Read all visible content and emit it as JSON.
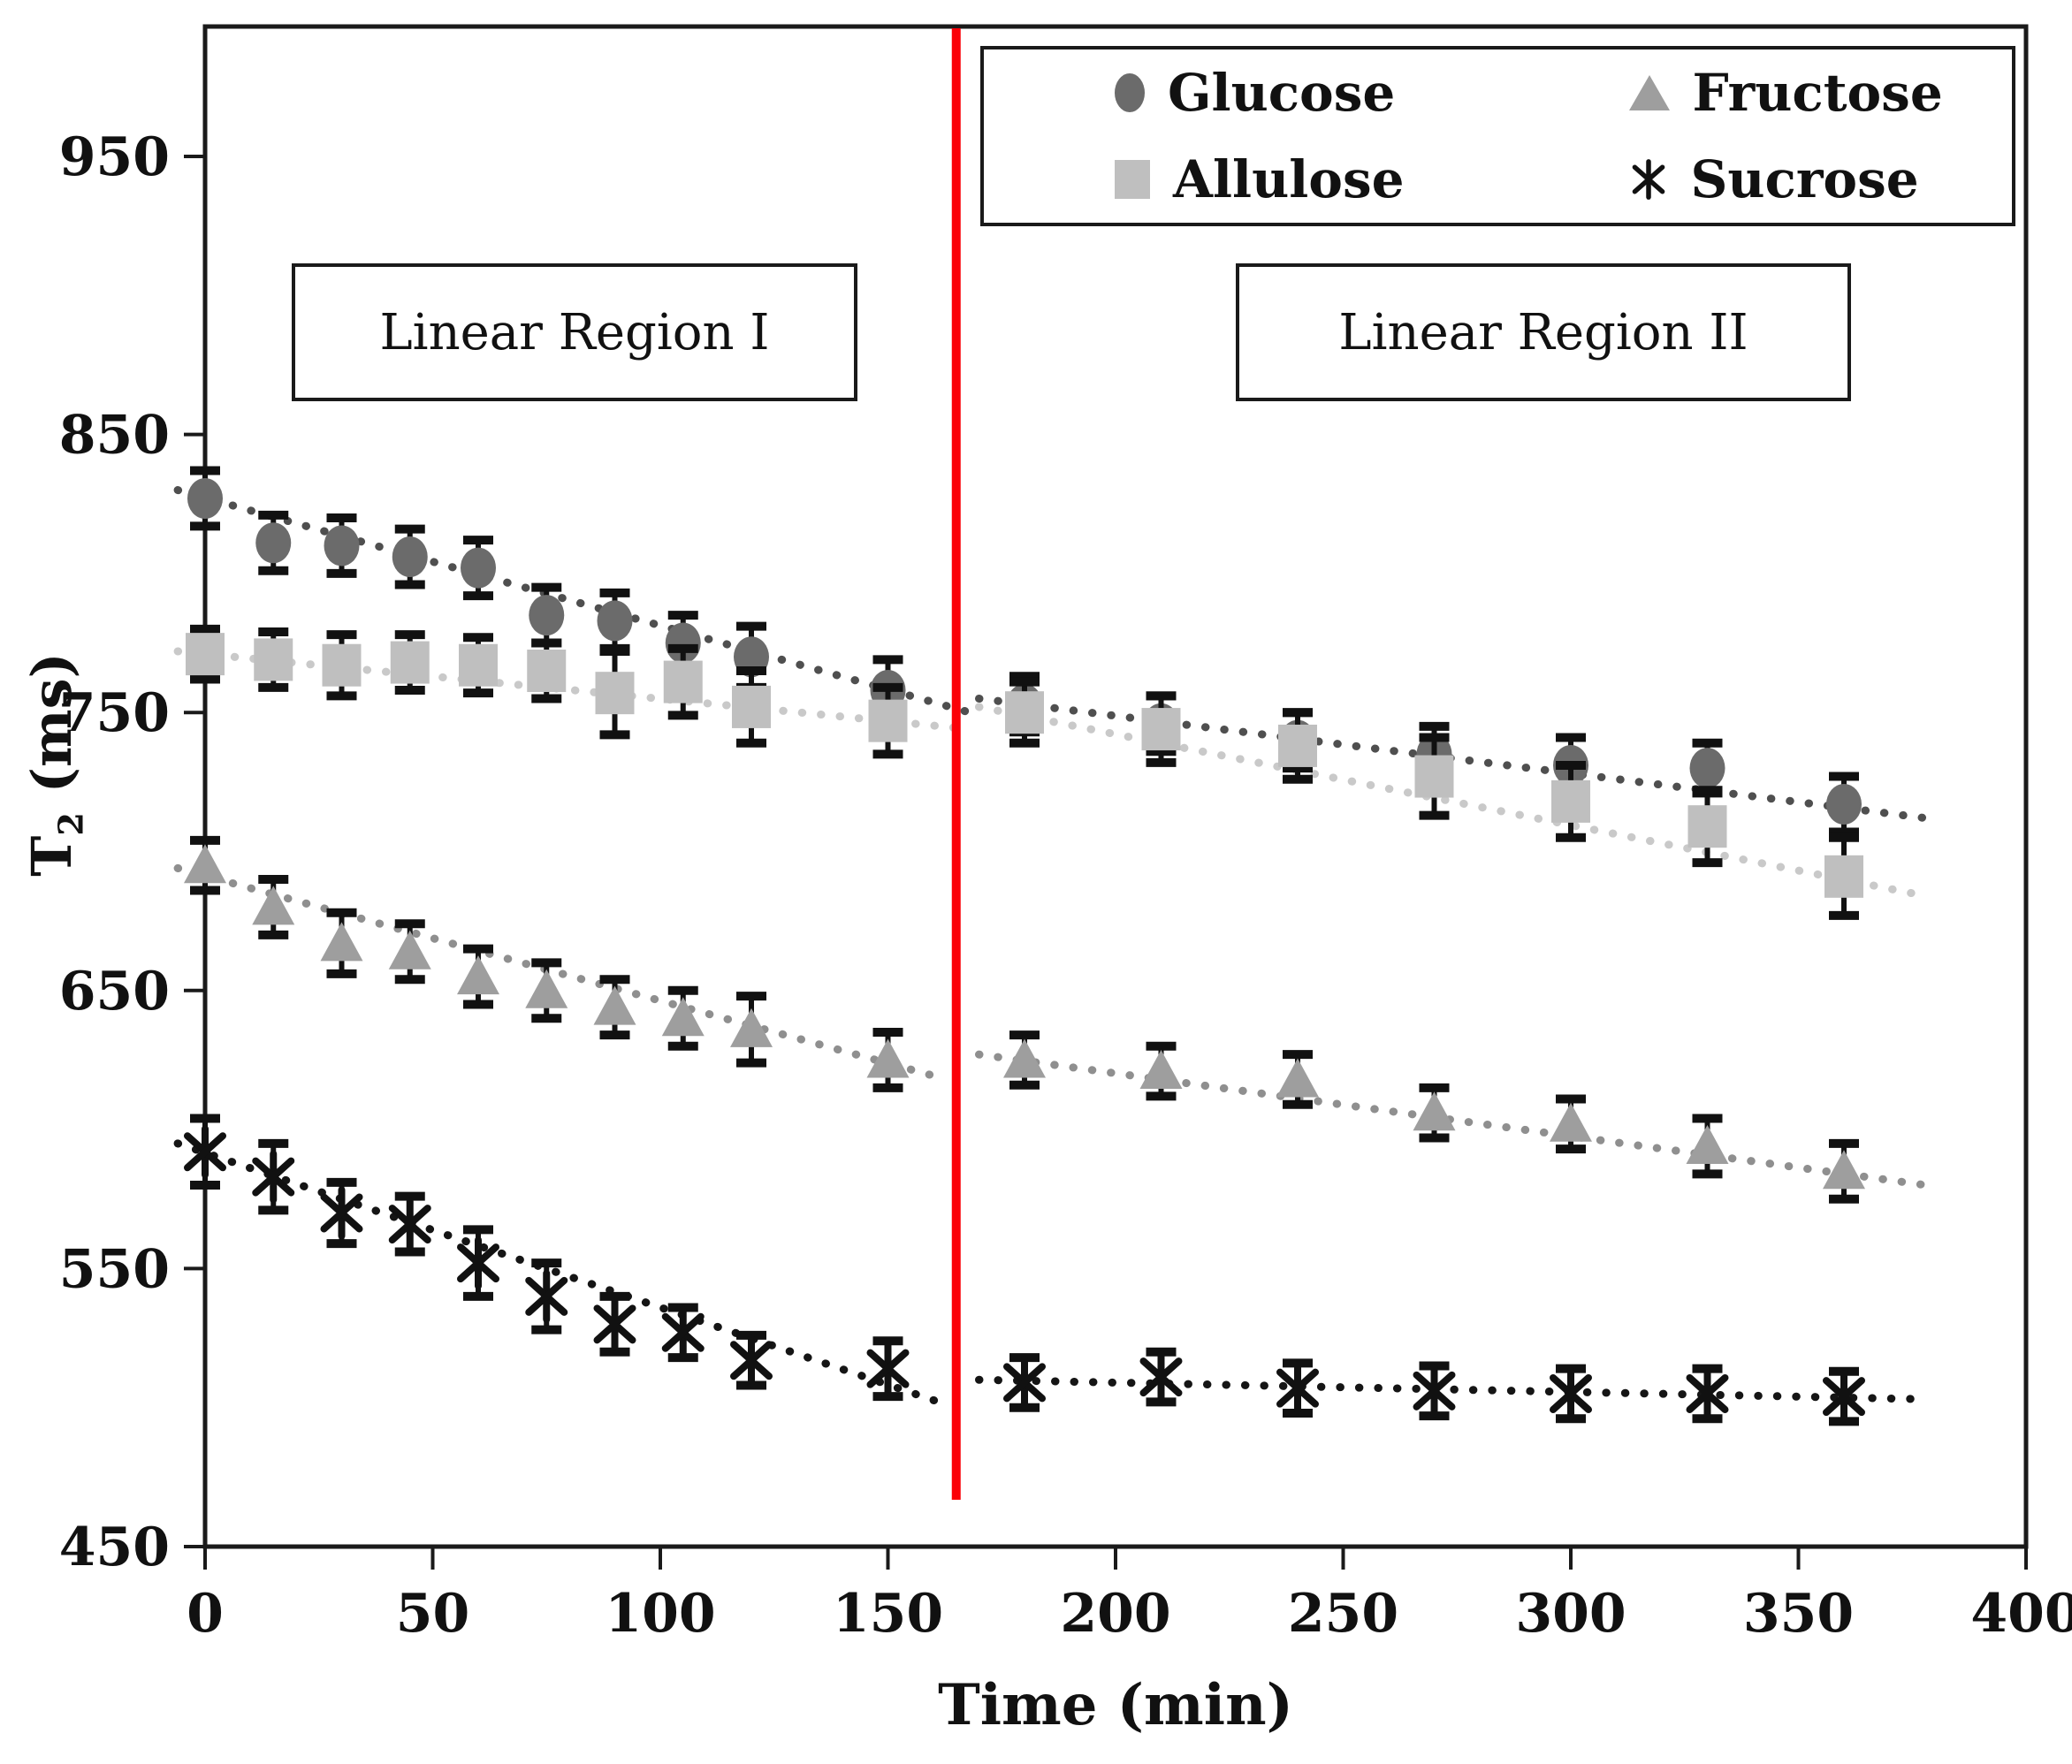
{
  "chart_data": {
    "type": "scatter",
    "title": "",
    "xlabel": "Time (min)",
    "ylabel": "T2 (ms)",
    "ylabel_main": "T",
    "ylabel_sub": "2",
    "ylabel_unit": " (ms)",
    "xlim": [
      0,
      400
    ],
    "ylim": [
      450,
      1000
    ],
    "xticks": [
      0,
      50,
      100,
      150,
      200,
      250,
      300,
      350,
      400
    ],
    "yticks": [
      450,
      550,
      650,
      750,
      850,
      950
    ],
    "grid": false,
    "legend_position": "top-right",
    "divider_t": 165,
    "divider_color": "#fb0007",
    "ink_color": "#1a1a1a",
    "error_color": "#111111",
    "annotations": [
      {
        "text": "Linear Region I"
      },
      {
        "text": "Linear Region II"
      }
    ],
    "legend": {
      "entries": [
        {
          "label": "Glucose",
          "marker": "circle",
          "color": "#6b6b6b"
        },
        {
          "label": "Fructose",
          "marker": "triangle",
          "color": "#9e9e9e"
        },
        {
          "label": "Allulose",
          "marker": "square",
          "color": "#bfbfbf"
        },
        {
          "label": "Sucrose",
          "marker": "asterisk",
          "color": "#111111"
        }
      ]
    },
    "series": [
      {
        "name": "Glucose",
        "marker": "circle",
        "color": "#6b6b6b",
        "trend_color": "#4f4f4f",
        "points": [
          {
            "t": 0,
            "y": 827,
            "err": 10
          },
          {
            "t": 15,
            "y": 811,
            "err": 10
          },
          {
            "t": 30,
            "y": 810,
            "err": 10
          },
          {
            "t": 45,
            "y": 806,
            "err": 10
          },
          {
            "t": 60,
            "y": 802,
            "err": 10
          },
          {
            "t": 75,
            "y": 785,
            "err": 10
          },
          {
            "t": 90,
            "y": 783,
            "err": 10
          },
          {
            "t": 105,
            "y": 775,
            "err": 10
          },
          {
            "t": 120,
            "y": 770,
            "err": 11
          },
          {
            "t": 150,
            "y": 758,
            "err": 11
          },
          {
            "t": 180,
            "y": 753,
            "err": 10
          },
          {
            "t": 210,
            "y": 746,
            "err": 10
          },
          {
            "t": 240,
            "y": 740,
            "err": 10
          },
          {
            "t": 270,
            "y": 735,
            "err": 10
          },
          {
            "t": 300,
            "y": 731,
            "err": 10
          },
          {
            "t": 330,
            "y": 730,
            "err": 9
          },
          {
            "t": 360,
            "y": 717,
            "err": 10
          }
        ],
        "trend": [
          {
            "t1": -6,
            "v1": 830,
            "t2": 168,
            "v2": 750
          },
          {
            "t1": 170,
            "v1": 755,
            "t2": 378,
            "v2": 712
          }
        ]
      },
      {
        "name": "Allulose",
        "marker": "square",
        "color": "#bfbfbf",
        "trend_color": "#c9c9c9",
        "points": [
          {
            "t": 0,
            "y": 771,
            "err": 9
          },
          {
            "t": 15,
            "y": 769,
            "err": 10
          },
          {
            "t": 30,
            "y": 767,
            "err": 11
          },
          {
            "t": 45,
            "y": 768,
            "err": 10
          },
          {
            "t": 60,
            "y": 767,
            "err": 10
          },
          {
            "t": 75,
            "y": 765,
            "err": 10
          },
          {
            "t": 90,
            "y": 757,
            "err": 15
          },
          {
            "t": 105,
            "y": 761,
            "err": 12
          },
          {
            "t": 120,
            "y": 752,
            "err": 13
          },
          {
            "t": 150,
            "y": 747,
            "err": 12
          },
          {
            "t": 180,
            "y": 750,
            "err": 11
          },
          {
            "t": 210,
            "y": 744,
            "err": 12
          },
          {
            "t": 240,
            "y": 738,
            "err": 12
          },
          {
            "t": 270,
            "y": 727,
            "err": 14
          },
          {
            "t": 300,
            "y": 718,
            "err": 13
          },
          {
            "t": 330,
            "y": 709,
            "err": 13
          },
          {
            "t": 360,
            "y": 691,
            "err": 14
          }
        ],
        "trend": [
          {
            "t1": -6,
            "v1": 772,
            "t2": 168,
            "v2": 744
          },
          {
            "t1": 170,
            "v1": 752,
            "t2": 378,
            "v2": 684
          }
        ]
      },
      {
        "name": "Fructose",
        "marker": "triangle",
        "color": "#9e9e9e",
        "trend_color": "#8f8f8f",
        "points": [
          {
            "t": 0,
            "y": 695,
            "err": 9
          },
          {
            "t": 15,
            "y": 680,
            "err": 10
          },
          {
            "t": 30,
            "y": 667,
            "err": 11
          },
          {
            "t": 45,
            "y": 664,
            "err": 10
          },
          {
            "t": 60,
            "y": 655,
            "err": 10
          },
          {
            "t": 75,
            "y": 650,
            "err": 10
          },
          {
            "t": 90,
            "y": 644,
            "err": 10
          },
          {
            "t": 105,
            "y": 640,
            "err": 10
          },
          {
            "t": 120,
            "y": 636,
            "err": 12
          },
          {
            "t": 150,
            "y": 625,
            "err": 10
          },
          {
            "t": 180,
            "y": 625,
            "err": 9
          },
          {
            "t": 210,
            "y": 621,
            "err": 9
          },
          {
            "t": 240,
            "y": 618,
            "err": 9
          },
          {
            "t": 270,
            "y": 606,
            "err": 9
          },
          {
            "t": 300,
            "y": 602,
            "err": 9
          },
          {
            "t": 330,
            "y": 594,
            "err": 10
          },
          {
            "t": 360,
            "y": 585,
            "err": 10
          }
        ],
        "trend": [
          {
            "t1": -6,
            "v1": 694,
            "t2": 163,
            "v2": 618
          },
          {
            "t1": 170,
            "v1": 627,
            "t2": 378,
            "v2": 580
          }
        ]
      },
      {
        "name": "Sucrose",
        "marker": "asterisk",
        "color": "#111111",
        "trend_color": "#151515",
        "points": [
          {
            "t": 0,
            "y": 592,
            "err": 12
          },
          {
            "t": 15,
            "y": 583,
            "err": 12
          },
          {
            "t": 30,
            "y": 570,
            "err": 11
          },
          {
            "t": 45,
            "y": 566,
            "err": 10
          },
          {
            "t": 60,
            "y": 552,
            "err": 12
          },
          {
            "t": 75,
            "y": 540,
            "err": 12
          },
          {
            "t": 90,
            "y": 530,
            "err": 10
          },
          {
            "t": 105,
            "y": 527,
            "err": 9
          },
          {
            "t": 120,
            "y": 517,
            "err": 9
          },
          {
            "t": 150,
            "y": 514,
            "err": 10
          },
          {
            "t": 180,
            "y": 509,
            "err": 9
          },
          {
            "t": 210,
            "y": 511,
            "err": 9
          },
          {
            "t": 240,
            "y": 507,
            "err": 9
          },
          {
            "t": 270,
            "y": 506,
            "err": 9
          },
          {
            "t": 300,
            "y": 505,
            "err": 9
          },
          {
            "t": 330,
            "y": 505,
            "err": 9
          },
          {
            "t": 360,
            "y": 504,
            "err": 9
          }
        ],
        "trend": [
          {
            "t1": -6,
            "v1": 595,
            "t2": 163,
            "v2": 501
          },
          {
            "t1": 170,
            "v1": 510,
            "t2": 378,
            "v2": 503
          }
        ]
      }
    ]
  }
}
